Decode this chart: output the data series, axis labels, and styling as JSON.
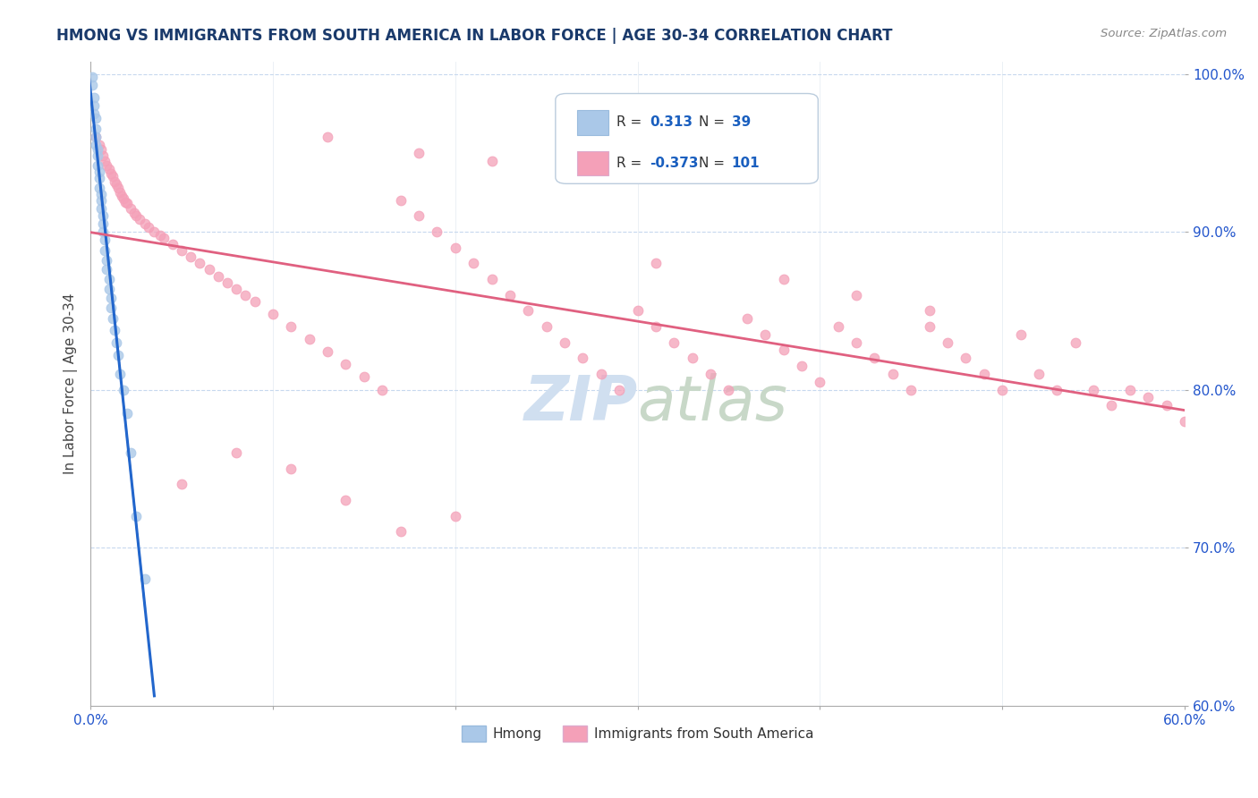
{
  "title": "HMONG VS IMMIGRANTS FROM SOUTH AMERICA IN LABOR FORCE | AGE 30-34 CORRELATION CHART",
  "source_text": "Source: ZipAtlas.com",
  "ylabel": "In Labor Force | Age 30-34",
  "xlim": [
    0.0,
    0.6
  ],
  "ylim": [
    0.6,
    1.008
  ],
  "xticks": [
    0.0,
    0.1,
    0.2,
    0.3,
    0.4,
    0.5,
    0.6
  ],
  "xticklabels": [
    "0.0%",
    "",
    "",
    "",
    "",
    "",
    "60.0%"
  ],
  "yticks": [
    0.6,
    0.7,
    0.8,
    0.9,
    1.0
  ],
  "yticklabels": [
    "60.0%",
    "70.0%",
    "80.0%",
    "90.0%",
    "100.0%"
  ],
  "hmong_R": 0.313,
  "hmong_N": 39,
  "sa_R": -0.373,
  "sa_N": 101,
  "hmong_color": "#aac8e8",
  "hmong_line_color": "#2266cc",
  "sa_color": "#f4a0b8",
  "sa_line_color": "#e06080",
  "title_color": "#1a3a6b",
  "source_color": "#888888",
  "stat_color": "#1a5fbf",
  "watermark_color": "#d0dff0",
  "background_color": "#ffffff",
  "hmong_x": [
    0.001,
    0.001,
    0.002,
    0.002,
    0.002,
    0.003,
    0.003,
    0.003,
    0.003,
    0.004,
    0.004,
    0.004,
    0.005,
    0.005,
    0.005,
    0.006,
    0.006,
    0.006,
    0.007,
    0.007,
    0.007,
    0.008,
    0.008,
    0.009,
    0.009,
    0.01,
    0.01,
    0.011,
    0.011,
    0.012,
    0.013,
    0.014,
    0.015,
    0.016,
    0.018,
    0.02,
    0.022,
    0.025,
    0.03
  ],
  "hmong_y": [
    0.998,
    0.993,
    0.985,
    0.98,
    0.975,
    0.972,
    0.965,
    0.96,
    0.955,
    0.952,
    0.948,
    0.942,
    0.938,
    0.934,
    0.928,
    0.924,
    0.92,
    0.915,
    0.91,
    0.905,
    0.9,
    0.895,
    0.888,
    0.882,
    0.876,
    0.87,
    0.864,
    0.858,
    0.852,
    0.845,
    0.838,
    0.83,
    0.822,
    0.81,
    0.8,
    0.785,
    0.76,
    0.72,
    0.68
  ],
  "sa_x": [
    0.003,
    0.005,
    0.006,
    0.007,
    0.008,
    0.009,
    0.01,
    0.011,
    0.012,
    0.013,
    0.014,
    0.015,
    0.016,
    0.017,
    0.018,
    0.019,
    0.02,
    0.022,
    0.024,
    0.025,
    0.027,
    0.03,
    0.032,
    0.035,
    0.038,
    0.04,
    0.045,
    0.05,
    0.055,
    0.06,
    0.065,
    0.07,
    0.075,
    0.08,
    0.085,
    0.09,
    0.1,
    0.11,
    0.12,
    0.13,
    0.14,
    0.15,
    0.16,
    0.17,
    0.18,
    0.19,
    0.2,
    0.21,
    0.22,
    0.23,
    0.24,
    0.25,
    0.26,
    0.27,
    0.28,
    0.29,
    0.3,
    0.31,
    0.32,
    0.33,
    0.34,
    0.35,
    0.36,
    0.37,
    0.38,
    0.39,
    0.4,
    0.41,
    0.42,
    0.43,
    0.44,
    0.45,
    0.46,
    0.47,
    0.48,
    0.49,
    0.5,
    0.51,
    0.52,
    0.53,
    0.54,
    0.55,
    0.56,
    0.57,
    0.58,
    0.59,
    0.6,
    0.38,
    0.42,
    0.46,
    0.13,
    0.18,
    0.22,
    0.26,
    0.31,
    0.05,
    0.08,
    0.11,
    0.14,
    0.17,
    0.2
  ],
  "sa_y": [
    0.96,
    0.955,
    0.952,
    0.948,
    0.945,
    0.942,
    0.94,
    0.937,
    0.935,
    0.932,
    0.93,
    0.928,
    0.925,
    0.923,
    0.921,
    0.919,
    0.918,
    0.915,
    0.912,
    0.91,
    0.908,
    0.905,
    0.903,
    0.9,
    0.898,
    0.896,
    0.892,
    0.888,
    0.884,
    0.88,
    0.876,
    0.872,
    0.868,
    0.864,
    0.86,
    0.856,
    0.848,
    0.84,
    0.832,
    0.824,
    0.816,
    0.808,
    0.8,
    0.92,
    0.91,
    0.9,
    0.89,
    0.88,
    0.87,
    0.86,
    0.85,
    0.84,
    0.83,
    0.82,
    0.81,
    0.8,
    0.85,
    0.84,
    0.83,
    0.82,
    0.81,
    0.8,
    0.845,
    0.835,
    0.825,
    0.815,
    0.805,
    0.84,
    0.83,
    0.82,
    0.81,
    0.8,
    0.84,
    0.83,
    0.82,
    0.81,
    0.8,
    0.835,
    0.81,
    0.8,
    0.83,
    0.8,
    0.79,
    0.8,
    0.795,
    0.79,
    0.78,
    0.87,
    0.86,
    0.85,
    0.96,
    0.95,
    0.945,
    0.94,
    0.88,
    0.74,
    0.76,
    0.75,
    0.73,
    0.71,
    0.72
  ]
}
